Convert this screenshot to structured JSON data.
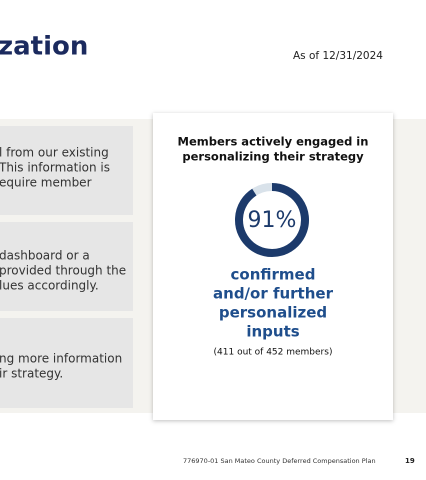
{
  "header": {
    "title": "zation",
    "as_of": "As of 12/31/2024"
  },
  "rows": [
    [
      "l from our existing",
      "This information is",
      "equire member"
    ],
    [
      "dashboard or a",
      "provided through the",
      "lues accordingly."
    ],
    [
      "ng more information",
      "ir strategy."
    ]
  ],
  "card": {
    "title_lines": [
      "Members actively engaged in",
      "personalizing their strategy"
    ],
    "percent": 91,
    "percent_label": "91%",
    "caption_lines": [
      "confirmed",
      "and/or further",
      "personalized",
      "inputs"
    ],
    "detail": "(411 out of 452 members)"
  },
  "footer": {
    "document": "776970-01 San Mateo County Deferred Compensation Plan",
    "page": "19"
  }
}
